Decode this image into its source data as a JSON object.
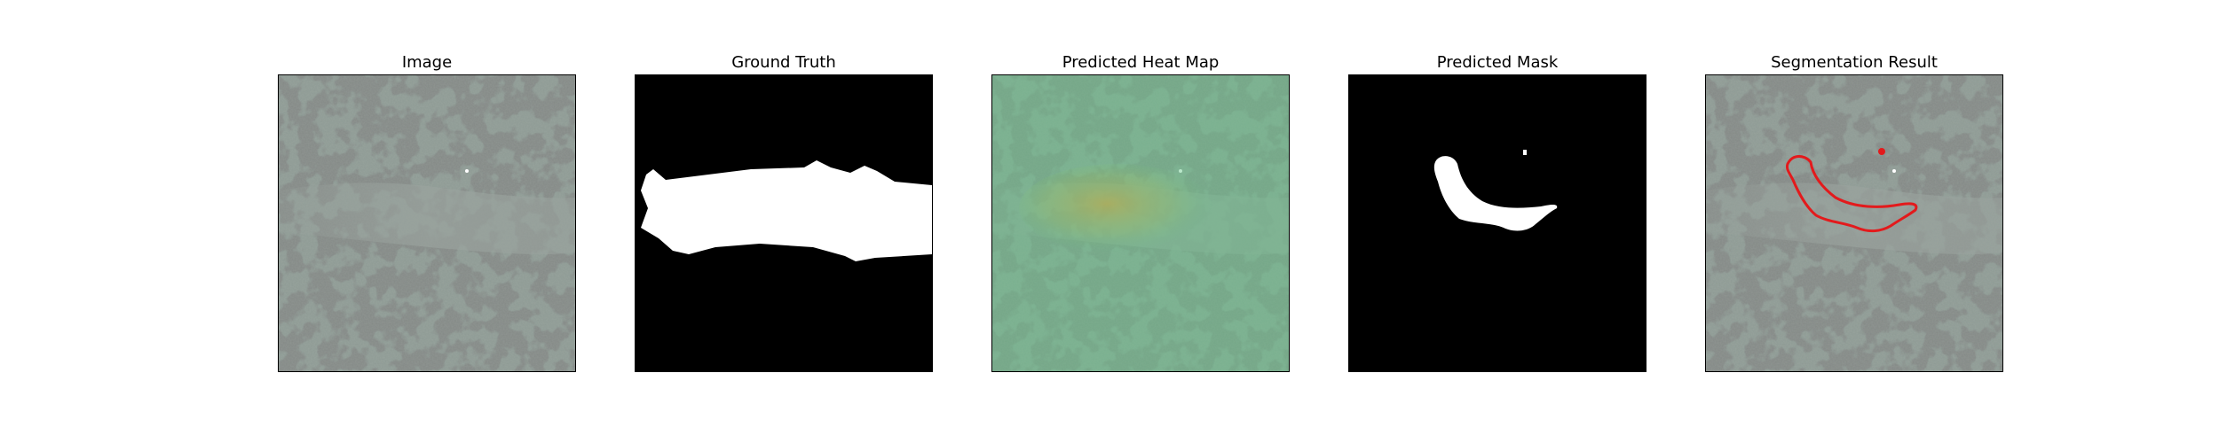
{
  "figure": {
    "panels": [
      {
        "title": "Image"
      },
      {
        "title": "Ground Truth"
      },
      {
        "title": "Predicted Heat Map"
      },
      {
        "title": "Predicted Mask"
      },
      {
        "title": "Segmentation Result"
      }
    ]
  },
  "colors": {
    "texture_base": "#8e9a94",
    "texture_spots": "#3b403e",
    "mask_background": "#000000",
    "mask_foreground": "#ffffff",
    "heatmap_overlay": "#63c98a",
    "heatmap_hotspot": "#b8a23c",
    "contour": "#e31a1c"
  }
}
